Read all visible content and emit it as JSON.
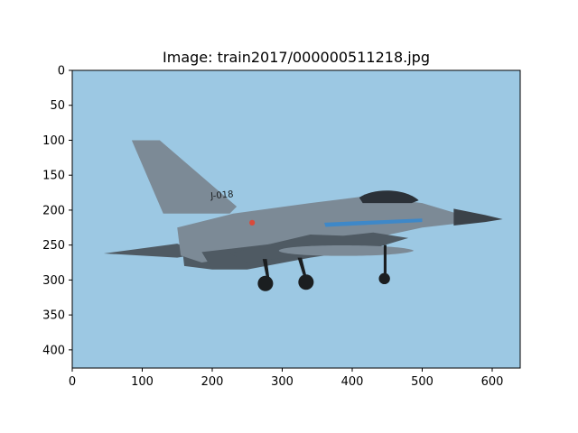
{
  "figure": {
    "title": "Image: train2017/000000511218.jpg",
    "image": {
      "width": 640,
      "height": 426,
      "subject": "f16-fighter-jet-icon",
      "tail_code": "J-018",
      "colors": {
        "sky": "#9cc8e3",
        "fuselage": "#7c8a96",
        "fuselage_dark": "#4f5a63",
        "canopy": "#2b3138",
        "nose": "#3b4249",
        "stripe": "#3e88c8",
        "wheel": "#1b1e20"
      }
    },
    "x_axis": {
      "range": [
        0,
        640
      ],
      "ticks": [
        "0",
        "100",
        "200",
        "300",
        "400",
        "500",
        "600"
      ],
      "tick_values": [
        0,
        100,
        200,
        300,
        400,
        500,
        600
      ]
    },
    "y_axis": {
      "range": [
        0,
        426
      ],
      "inverted": true,
      "ticks": [
        "0",
        "50",
        "100",
        "150",
        "200",
        "250",
        "300",
        "350",
        "400"
      ],
      "tick_values": [
        0,
        50,
        100,
        150,
        200,
        250,
        300,
        350,
        400
      ]
    }
  }
}
